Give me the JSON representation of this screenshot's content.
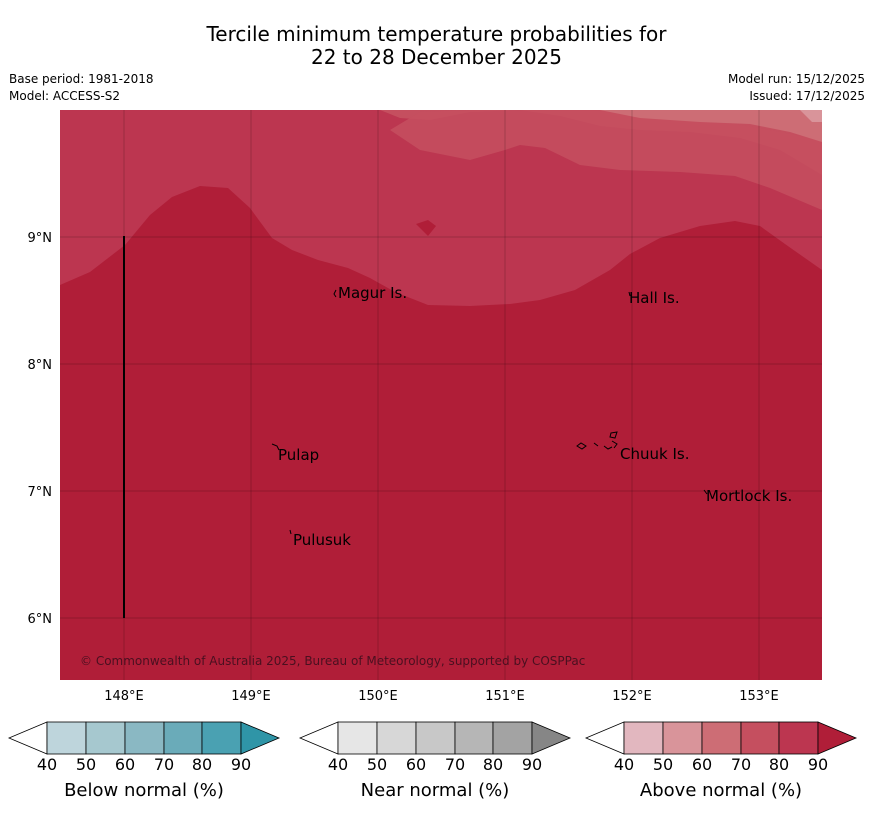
{
  "title": {
    "line1": "Tercile minimum temperature probabilities for",
    "line2": "22 to 28 December 2025"
  },
  "meta": {
    "base_period": "Base period: 1981-2018",
    "model": "Model: ACCESS-S2",
    "model_run": "Model run: 15/12/2025",
    "issued": "Issued: 17/12/2025"
  },
  "map": {
    "lon_range": [
      147.5,
      153.5
    ],
    "lat_range": [
      5.5,
      10.0
    ],
    "lon_ticks": [
      "148°E",
      "149°E",
      "150°E",
      "151°E",
      "152°E",
      "153°E"
    ],
    "lat_ticks": [
      "9°N",
      "8°N",
      "7°N",
      "6°N"
    ],
    "places": [
      {
        "name": "Magur Is."
      },
      {
        "name": "Hall Is."
      },
      {
        "name": "Pulap"
      },
      {
        "name": "Chuuk Is."
      },
      {
        "name": "Mortlock Is."
      },
      {
        "name": "Pulusuk"
      }
    ],
    "copyright": "© Commonwealth of Australia 2025, Bureau of Meteorology, supported by COSPPac",
    "colors": {
      "above_90": "#b01e38",
      "above_80": "#bc3650",
      "above_70": "#c54f5f",
      "above_60": "#cd6d75",
      "above_50": "#d9949a"
    }
  },
  "legends": [
    {
      "label": "Below normal (%)",
      "ticks": [
        "40",
        "50",
        "60",
        "70",
        "80",
        "90"
      ],
      "colors": [
        "#ffffff",
        "#bed5dc",
        "#a6c8cf",
        "#8ab8c3",
        "#6aabb9",
        "#4aa1b2",
        "#2f95a7"
      ]
    },
    {
      "label": "Near normal (%)",
      "ticks": [
        "40",
        "50",
        "60",
        "70",
        "80",
        "90"
      ],
      "colors": [
        "#ffffff",
        "#e6e6e6",
        "#d7d7d7",
        "#c8c8c8",
        "#b6b6b6",
        "#a3a3a3",
        "#868686"
      ]
    },
    {
      "label": "Above normal (%)",
      "ticks": [
        "40",
        "50",
        "60",
        "70",
        "80",
        "90"
      ],
      "colors": [
        "#ffffff",
        "#e2b7bf",
        "#d9949a",
        "#cd6d75",
        "#c54f5f",
        "#bc3650",
        "#b01e38"
      ]
    }
  ]
}
